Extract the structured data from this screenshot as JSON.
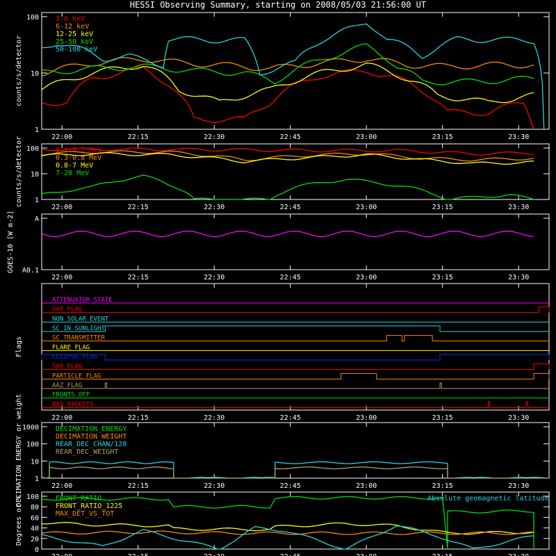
{
  "title": "HESSI Observing Summary, starting on 2008/05/03 21:56:00 UT",
  "colors": {
    "red": "#ff0000",
    "orange": "#ff8a00",
    "yellow": "#ffff00",
    "green": "#00e000",
    "cyan": "#20d8e0",
    "magenta": "#ff00ff",
    "blue": "#0030ff",
    "olive": "#b0a060",
    "white": "#ffffff"
  },
  "time_axis": {
    "start": "21:56",
    "end": "23:36",
    "tick_labels": [
      "22:00",
      "22:15",
      "22:30",
      "22:45",
      "23:00",
      "23:15",
      "23:30"
    ],
    "tick_minutes": [
      4,
      19,
      34,
      49,
      64,
      79,
      94
    ]
  },
  "chart_data": [
    {
      "type": "line",
      "name_key": "panel1",
      "ylabel": "counts/s/detector",
      "yscale": "log",
      "ylim": [
        1,
        100
      ],
      "y_tick_labels": [
        "1",
        "10",
        "100"
      ],
      "y_ticks": [
        1,
        10,
        100
      ],
      "series": [
        {
          "name": "3-6 keV",
          "color": "red",
          "points": [
            [
              0,
              3
            ],
            [
              5,
              3
            ],
            [
              10,
              8
            ],
            [
              20,
              12
            ],
            [
              27,
              4
            ],
            [
              30,
              1.5
            ],
            [
              40,
              1.5
            ],
            [
              45,
              3
            ],
            [
              55,
              9
            ],
            [
              64,
              11
            ],
            [
              70,
              8
            ],
            [
              75,
              5
            ],
            [
              80,
              2
            ],
            [
              88,
              2
            ],
            [
              95,
              3
            ],
            [
              97,
              1
            ]
          ]
        },
        {
          "name": "6-12 keV",
          "color": "orange",
          "points": [
            [
              0,
              10
            ],
            [
              10,
              15
            ],
            [
              20,
              18
            ],
            [
              28,
              15
            ],
            [
              35,
              14
            ],
            [
              45,
              12
            ],
            [
              55,
              15
            ],
            [
              64,
              18
            ],
            [
              72,
              14
            ],
            [
              80,
              13
            ],
            [
              90,
              14
            ],
            [
              97,
              14
            ]
          ]
        },
        {
          "name": "12-25 keV",
          "color": "yellow",
          "points": [
            [
              0,
              5
            ],
            [
              10,
              10
            ],
            [
              20,
              14
            ],
            [
              27,
              5
            ],
            [
              35,
              3
            ],
            [
              45,
              5
            ],
            [
              55,
              10
            ],
            [
              64,
              14
            ],
            [
              72,
              8
            ],
            [
              78,
              4
            ],
            [
              88,
              3
            ],
            [
              97,
              4
            ]
          ]
        },
        {
          "name": "25-50 keV",
          "color": "green",
          "points": [
            [
              0,
              10
            ],
            [
              10,
              12
            ],
            [
              20,
              13
            ],
            [
              30,
              11
            ],
            [
              40,
              10
            ],
            [
              46,
              7
            ],
            [
              55,
              17
            ],
            [
              64,
              30
            ],
            [
              70,
              13
            ],
            [
              75,
              7
            ],
            [
              85,
              7
            ],
            [
              97,
              8
            ]
          ]
        },
        {
          "name": "50-100 keV",
          "color": "cyan",
          "points": [
            [
              0,
              28
            ],
            [
              3,
              35
            ],
            [
              12,
              18
            ],
            [
              17,
              20
            ],
            [
              20,
              17
            ],
            [
              24,
              14
            ],
            [
              25,
              40
            ],
            [
              40,
              38
            ],
            [
              43,
              10
            ],
            [
              50,
              15
            ],
            [
              55,
              38
            ],
            [
              62,
              65
            ],
            [
              64,
              80
            ],
            [
              68,
              40
            ],
            [
              75,
              20
            ],
            [
              82,
              40
            ],
            [
              97,
              38
            ],
            [
              99,
              1
            ]
          ]
        }
      ]
    },
    {
      "type": "line",
      "name_key": "panel2",
      "ylabel": "counts/s/detector",
      "yscale": "log",
      "ylim": [
        1,
        100
      ],
      "y_tick_labels": [
        "1",
        "10",
        "100"
      ],
      "y_ticks": [
        1,
        10,
        100
      ],
      "series": [
        {
          "name": "0.1-0.3 MeV",
          "color": "red",
          "points": [
            [
              0,
              90
            ],
            [
              20,
              90
            ],
            [
              40,
              85
            ],
            [
              55,
              80
            ],
            [
              70,
              80
            ],
            [
              85,
              60
            ],
            [
              97,
              65
            ]
          ]
        },
        {
          "name": "0.3-0.8 MeV",
          "color": "orange",
          "points": [
            [
              0,
              60
            ],
            [
              10,
              70
            ],
            [
              25,
              70
            ],
            [
              40,
              35
            ],
            [
              55,
              55
            ],
            [
              64,
              60
            ],
            [
              75,
              40
            ],
            [
              85,
              35
            ],
            [
              97,
              40
            ]
          ]
        },
        {
          "name": "0.8-7 MeV",
          "color": "yellow",
          "points": [
            [
              0,
              50
            ],
            [
              10,
              60
            ],
            [
              25,
              55
            ],
            [
              40,
              30
            ],
            [
              55,
              45
            ],
            [
              64,
              55
            ],
            [
              75,
              35
            ],
            [
              85,
              25
            ],
            [
              97,
              28
            ]
          ]
        },
        {
          "name": "7-20 MeV",
          "color": "green",
          "points": [
            [
              0,
              1.5
            ],
            [
              10,
              3
            ],
            [
              20,
              8
            ],
            [
              25,
              4
            ],
            [
              30,
              1
            ],
            [
              45,
              1
            ],
            [
              50,
              3
            ],
            [
              60,
              6
            ],
            [
              68,
              4
            ],
            [
              80,
              1
            ],
            [
              92,
              1.5
            ],
            [
              97,
              1
            ]
          ]
        }
      ]
    },
    {
      "type": "line",
      "name_key": "panel3",
      "ylabel": "GOES-10 [W m-2]",
      "yscale": "log",
      "ylim": [
        0.1,
        1
      ],
      "y_tick_labels": [
        "A0.1",
        "A"
      ],
      "y_ticks": [
        0.1,
        1
      ],
      "series": [
        {
          "name": "goes",
          "color": "magenta",
          "points": [
            [
              0,
              0.5
            ],
            [
              97,
              0.5
            ]
          ]
        }
      ]
    },
    {
      "type": "line",
      "name_key": "flags",
      "ylabel": "Flags",
      "flags": [
        {
          "name": "ATTENUATOR_STATE",
          "color": "magenta",
          "high": []
        },
        {
          "name": "GAP_FLAG",
          "color": "red",
          "high": [
            [
              98,
              100
            ]
          ]
        },
        {
          "name": "NON_SOLAR_EVENT",
          "color": "cyan",
          "high": []
        },
        {
          "name": "SC_IN_SUNLIGHT",
          "color": "cyan",
          "high": [
            [
              12.5,
              78.5
            ]
          ]
        },
        {
          "name": "SC_TRANSMITTER",
          "color": "orange",
          "high": [
            [
              68,
              71
            ],
            [
              71.5,
              77
            ]
          ]
        },
        {
          "name": "FLARE_FLAG",
          "color": "yellow",
          "high": []
        },
        {
          "name": "ECLIPSE_FLAG",
          "color": "blue",
          "high": [
            [
              0,
              12.5
            ],
            [
              78.5,
              100
            ]
          ]
        },
        {
          "name": "SAA_FLAG",
          "color": "red",
          "high": [
            [
              97,
              100
            ]
          ]
        },
        {
          "name": "PARTICLE_FLAG",
          "color": "orange",
          "high": [
            [
              59,
              66
            ],
            [
              97,
              100
            ]
          ]
        },
        {
          "name": "AAZ_FLAG",
          "color": "olive",
          "high": [
            [
              12.5,
              12.8
            ],
            [
              78.5,
              78.8
            ]
          ]
        },
        {
          "name": "FRONTS_OFF",
          "color": "green",
          "high": []
        },
        {
          "name": "BAD_PACKETS",
          "color": "red",
          "high": [
            [
              88,
              88.3
            ],
            [
              95.5,
              95.8
            ]
          ]
        }
      ]
    },
    {
      "type": "line",
      "name_key": "panel5",
      "ylabel": "DECIMATION ENERGY or weight",
      "yscale": "log",
      "ylim": [
        1,
        1000
      ],
      "y_tick_labels": [
        "1",
        "10",
        "100",
        "1000"
      ],
      "y_ticks": [
        1,
        10,
        100,
        1000
      ],
      "series": [
        {
          "name": "DECIMATION_ENERGY",
          "color": "green",
          "points": []
        },
        {
          "name": "DECIMATION_WEIGHT",
          "color": "orange",
          "points": []
        },
        {
          "name": "REAR_DEC_CHAN/128",
          "color": "cyan",
          "points": [
            [
              0,
              1
            ],
            [
              1.5,
              1
            ],
            [
              1.5,
              8
            ],
            [
              26,
              8
            ],
            [
              26,
              1
            ],
            [
              46,
              1
            ],
            [
              46,
              8
            ],
            [
              80,
              8
            ],
            [
              80,
              1
            ],
            [
              100,
              1
            ]
          ]
        },
        {
          "name": "REAR_DEC_WEIGHT",
          "color": "olive",
          "points": [
            [
              0,
              1
            ],
            [
              1.5,
              1
            ],
            [
              1.5,
              4
            ],
            [
              26,
              4
            ],
            [
              26,
              1
            ],
            [
              46,
              1
            ],
            [
              46,
              4
            ],
            [
              80,
              4
            ],
            [
              80,
              1
            ],
            [
              100,
              1
            ]
          ]
        }
      ]
    },
    {
      "type": "line",
      "name_key": "panel6",
      "ylabel": "Degrees or %",
      "yscale": "linear",
      "ylim": [
        0,
        100
      ],
      "y_tick_labels": [
        "0",
        "20",
        "40",
        "60",
        "80",
        "100"
      ],
      "y_ticks": [
        0,
        20,
        40,
        60,
        80,
        100
      ],
      "series": [
        {
          "name": "FRONT_RATIO",
          "color": "green",
          "points": [
            [
              0,
              95
            ],
            [
              25,
              95
            ],
            [
              26,
              80
            ],
            [
              45,
              80
            ],
            [
              46,
              97
            ],
            [
              79,
              97
            ],
            [
              80,
              0
            ],
            [
              80,
              70
            ],
            [
              97,
              72
            ],
            [
              97,
              0
            ]
          ]
        },
        {
          "name": "FRONT_RATIO_1225",
          "color": "yellow",
          "points": [
            [
              0,
              50
            ],
            [
              10,
              46
            ],
            [
              25,
              44
            ],
            [
              26,
              38
            ],
            [
              45,
              37
            ],
            [
              46,
              42
            ],
            [
              60,
              48
            ],
            [
              70,
              44
            ],
            [
              80,
              30
            ],
            [
              97,
              32
            ]
          ]
        },
        {
          "name": "MAX_DET_VS_TOT",
          "color": "orange",
          "points": [
            [
              0,
              30
            ],
            [
              20,
              32
            ],
            [
              40,
              30
            ],
            [
              60,
              30
            ],
            [
              80,
              30
            ],
            [
              97,
              30
            ]
          ]
        },
        {
          "name": "Absolute geomagnetic latitude",
          "color": "cyan",
          "points": [
            [
              0,
              25
            ],
            [
              12,
              5
            ],
            [
              20,
              35
            ],
            [
              35,
              0
            ],
            [
              42,
              40
            ],
            [
              48,
              35
            ],
            [
              60,
              0
            ],
            [
              70,
              45
            ],
            [
              78,
              25
            ],
            [
              85,
              0
            ],
            [
              97,
              25
            ]
          ]
        }
      ]
    }
  ]
}
